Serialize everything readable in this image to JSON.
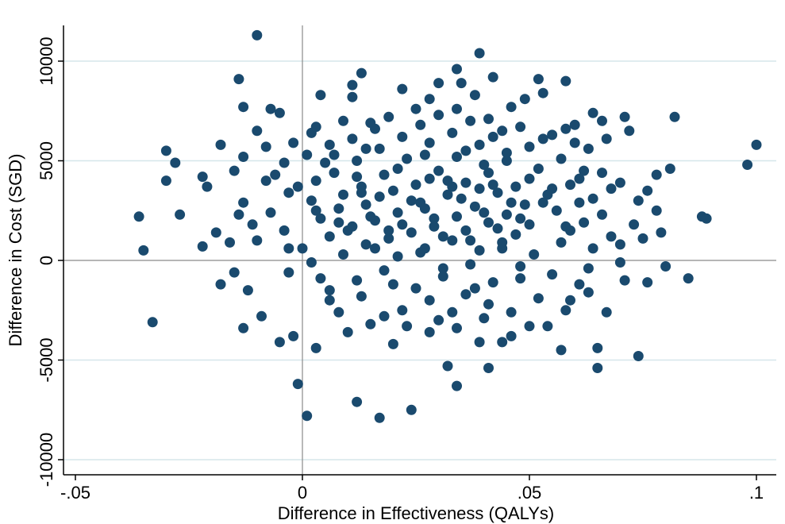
{
  "chart_data": {
    "type": "scatter",
    "title": "",
    "xlabel": "Difference in Effectiveness (QALYs)",
    "ylabel": "Difference in Cost (SGD)",
    "xlim": [
      -0.05,
      0.1
    ],
    "ylim": [
      -10000,
      10000
    ],
    "x_ticks": [
      {
        "value": -0.05,
        "label": "-.05"
      },
      {
        "value": 0,
        "label": "0"
      },
      {
        "value": 0.05,
        "label": ".05"
      },
      {
        "value": 0.1,
        "label": ".1"
      }
    ],
    "y_ticks": [
      {
        "value": -10000,
        "label": "-10000"
      },
      {
        "value": -5000,
        "label": "-5000"
      },
      {
        "value": 0,
        "label": "0"
      },
      {
        "value": 5000,
        "label": "5000"
      },
      {
        "value": 10000,
        "label": "10000"
      }
    ],
    "grid": "horizontal",
    "reference_lines": {
      "x": 0,
      "y": 0
    },
    "colors": {
      "points": "#1a4a6e",
      "grid": "#d6e6ea",
      "axis": "#000000",
      "reference": "#8a8a8a"
    },
    "series": [
      {
        "points": [
          [
            -0.01,
            11300
          ],
          [
            0.039,
            10400
          ],
          [
            0.034,
            9600
          ],
          [
            0.013,
            9400
          ],
          [
            -0.014,
            9100
          ],
          [
            0.042,
            9200
          ],
          [
            0.052,
            9100
          ],
          [
            0.058,
            9000
          ],
          [
            0.03,
            8900
          ],
          [
            0.035,
            8900
          ],
          [
            0.011,
            8800
          ],
          [
            0.004,
            8300
          ],
          [
            0.011,
            8200
          ],
          [
            0.049,
            8100
          ],
          [
            0.053,
            8400
          ],
          [
            -0.013,
            7700
          ],
          [
            -0.007,
            7600
          ],
          [
            -0.005,
            7400
          ],
          [
            0.034,
            7600
          ],
          [
            0.064,
            7400
          ],
          [
            0.071,
            7200
          ],
          [
            0.082,
            7200
          ],
          [
            0.066,
            7000
          ],
          [
            -0.01,
            6500
          ],
          [
            0.002,
            6400
          ],
          [
            0.06,
            6800
          ],
          [
            0.072,
            6500
          ],
          [
            0.067,
            6100
          ],
          [
            -0.018,
            5800
          ],
          [
            -0.03,
            5500
          ],
          [
            -0.013,
            5200
          ],
          [
            -0.028,
            4900
          ],
          [
            0.1,
            5800
          ],
          [
            0.098,
            4800
          ],
          [
            0.078,
            4300
          ],
          [
            0.081,
            4600
          ],
          [
            -0.022,
            4200
          ],
          [
            -0.03,
            4000
          ],
          [
            -0.021,
            3700
          ],
          [
            -0.008,
            4000
          ],
          [
            0.068,
            3600
          ],
          [
            0.076,
            3500
          ],
          [
            -0.036,
            2200
          ],
          [
            -0.027,
            2300
          ],
          [
            -0.014,
            2300
          ],
          [
            0.074,
            3000
          ],
          [
            0.078,
            2500
          ],
          [
            0.088,
            2200
          ],
          [
            0.089,
            2100
          ],
          [
            -0.019,
            1400
          ],
          [
            -0.022,
            700
          ],
          [
            -0.01,
            1000
          ],
          [
            0.075,
            1100
          ],
          [
            0.079,
            1400
          ],
          [
            -0.035,
            500
          ],
          [
            0.07,
            -100
          ],
          [
            0.071,
            -1000
          ],
          [
            0.085,
            -900
          ],
          [
            0.08,
            -300
          ],
          [
            -0.018,
            -1200
          ],
          [
            -0.012,
            -1500
          ],
          [
            0.076,
            -1100
          ],
          [
            -0.033,
            -3100
          ],
          [
            -0.013,
            -3400
          ],
          [
            -0.005,
            -4100
          ],
          [
            0.065,
            -4400
          ],
          [
            0.074,
            -4800
          ],
          [
            0.057,
            -4500
          ],
          [
            0.065,
            -5400
          ],
          [
            0.041,
            -5400
          ],
          [
            0.032,
            -5300
          ],
          [
            0.034,
            -6300
          ],
          [
            -0.001,
            -6200
          ],
          [
            0.012,
            -7100
          ],
          [
            0.001,
            -7800
          ],
          [
            0.017,
            -7900
          ],
          [
            0.024,
            -7500
          ],
          [
            0.003,
            -4400
          ],
          [
            0.01,
            -3600
          ],
          [
            0.02,
            -4200
          ],
          [
            0.044,
            -4100
          ],
          [
            0.05,
            -3300
          ],
          [
            0.054,
            -3300
          ],
          [
            0.039,
            -4100
          ],
          [
            0.028,
            -3600
          ],
          [
            0.015,
            -3200
          ],
          [
            0.008,
            -2600
          ],
          [
            -0.002,
            -3800
          ],
          [
            0.006,
            -2000
          ],
          [
            0.022,
            -2500
          ],
          [
            0.033,
            -2600
          ],
          [
            0.046,
            -2600
          ],
          [
            0.059,
            -2000
          ],
          [
            0.067,
            -2600
          ],
          [
            0.052,
            -1900
          ],
          [
            0.036,
            -1700
          ],
          [
            0.025,
            -1400
          ],
          [
            0.012,
            -1000
          ],
          [
            -0.003,
            -600
          ],
          [
            0.004,
            -900
          ],
          [
            0.018,
            -500
          ],
          [
            0.031,
            -800
          ],
          [
            0.042,
            -1100
          ],
          [
            0.055,
            -700
          ],
          [
            0.063,
            -400
          ],
          [
            0.061,
            -1200
          ],
          [
            0.048,
            -300
          ],
          [
            0.037,
            -200
          ],
          [
            0.021,
            200
          ],
          [
            0.009,
            300
          ],
          [
            0,
            600
          ],
          [
            0.014,
            800
          ],
          [
            0.027,
            600
          ],
          [
            0.039,
            500
          ],
          [
            0.051,
            300
          ],
          [
            0.064,
            600
          ],
          [
            0.057,
            900
          ],
          [
            0.044,
            900
          ],
          [
            0.033,
            1000
          ],
          [
            0.019,
            1100
          ],
          [
            0.006,
            1200
          ],
          [
            -0.004,
            1500
          ],
          [
            0.011,
            1700
          ],
          [
            0.024,
            1400
          ],
          [
            0.036,
            1500
          ],
          [
            0.047,
            1300
          ],
          [
            0.059,
            1500
          ],
          [
            0.068,
            1200
          ],
          [
            0.062,
            1900
          ],
          [
            0.05,
            1800
          ],
          [
            0.041,
            1900
          ],
          [
            0.029,
            1700
          ],
          [
            0.016,
            2000
          ],
          [
            0.004,
            2100
          ],
          [
            -0.007,
            2400
          ],
          [
            0.008,
            2600
          ],
          [
            0.021,
            2400
          ],
          [
            0.034,
            2200
          ],
          [
            0.045,
            2300
          ],
          [
            0.056,
            2500
          ],
          [
            0.066,
            2300
          ],
          [
            0.061,
            2900
          ],
          [
            0.049,
            2800
          ],
          [
            0.038,
            2700
          ],
          [
            0.026,
            2900
          ],
          [
            0.014,
            2800
          ],
          [
            0.002,
            3000
          ],
          [
            -0.003,
            3400
          ],
          [
            0.009,
            3300
          ],
          [
            0.02,
            3500
          ],
          [
            0.032,
            3300
          ],
          [
            0.043,
            3400
          ],
          [
            0.054,
            3300
          ],
          [
            0.064,
            3100
          ],
          [
            0.059,
            3800
          ],
          [
            0.047,
            3700
          ],
          [
            0.036,
            3900
          ],
          [
            0.025,
            3800
          ],
          [
            0.013,
            3700
          ],
          [
            0.003,
            4000
          ],
          [
            -0.006,
            4300
          ],
          [
            0.007,
            4400
          ],
          [
            0.018,
            4300
          ],
          [
            0.03,
            4500
          ],
          [
            0.041,
            4400
          ],
          [
            0.052,
            4600
          ],
          [
            0.062,
            4500
          ],
          [
            0.057,
            5100
          ],
          [
            0.045,
            5000
          ],
          [
            0.034,
            5200
          ],
          [
            0.023,
            5100
          ],
          [
            0.012,
            5000
          ],
          [
            0.001,
            5300
          ],
          [
            -0.008,
            5700
          ],
          [
            0.006,
            5800
          ],
          [
            0.017,
            5600
          ],
          [
            0.028,
            5900
          ],
          [
            0.039,
            5800
          ],
          [
            0.05,
            5700
          ],
          [
            0.06,
            5900
          ],
          [
            0.055,
            6300
          ],
          [
            0.044,
            6500
          ],
          [
            0.033,
            6400
          ],
          [
            0.022,
            6200
          ],
          [
            0.011,
            6100
          ],
          [
            0.003,
            6700
          ],
          [
            0.015,
            6900
          ],
          [
            0.026,
            6800
          ],
          [
            0.037,
            7000
          ],
          [
            0.048,
            6700
          ],
          [
            0.019,
            7200
          ],
          [
            0.03,
            7300
          ],
          [
            0.041,
            7100
          ],
          [
            0.009,
            7000
          ],
          [
            0.025,
            7600
          ],
          [
            0.01,
            1500
          ],
          [
            0.015,
            2200
          ],
          [
            0.022,
            1800
          ],
          [
            0.027,
            2600
          ],
          [
            0.031,
            1200
          ],
          [
            0.035,
            3100
          ],
          [
            0.04,
            2400
          ],
          [
            0.043,
            1600
          ],
          [
            0.046,
            2900
          ],
          [
            0.039,
            3600
          ],
          [
            0.028,
            4100
          ],
          [
            0.017,
            3200
          ],
          [
            0.012,
            4200
          ],
          [
            0.024,
            3000
          ],
          [
            0.033,
            3700
          ],
          [
            0.019,
            1500
          ],
          [
            0.029,
            2100
          ],
          [
            0.037,
            1000
          ],
          [
            0.042,
            3800
          ],
          [
            0.048,
            2100
          ],
          [
            0.053,
            2900
          ],
          [
            0.058,
            1700
          ],
          [
            0.044,
            600
          ],
          [
            0.026,
            400
          ],
          [
            0.016,
            600
          ],
          [
            0.008,
            1900
          ],
          [
            0.013,
            3400
          ],
          [
            0.021,
            4600
          ],
          [
            0.032,
            4000
          ],
          [
            0.04,
            4800
          ],
          [
            0.05,
            4100
          ],
          [
            0.055,
            3600
          ],
          [
            0.061,
            4100
          ],
          [
            0.045,
            5400
          ],
          [
            0.036,
            5500
          ],
          [
            0.027,
            5300
          ],
          [
            0.014,
            5600
          ],
          [
            0.005,
            4900
          ],
          [
            -0.001,
            3700
          ],
          [
            0.003,
            2500
          ],
          [
            0.031,
            -400
          ],
          [
            0.02,
            -1200
          ],
          [
            0.038,
            -1400
          ],
          [
            0.048,
            -900
          ],
          [
            0.013,
            -1800
          ],
          [
            0.028,
            -2000
          ],
          [
            0.041,
            -2200
          ],
          [
            0.006,
            -1500
          ],
          [
            -0.009,
            -2800
          ],
          [
            -0.015,
            -600
          ],
          [
            -0.016,
            900
          ],
          [
            -0.011,
            1800
          ],
          [
            -0.013,
            2900
          ],
          [
            -0.015,
            4500
          ],
          [
            -0.004,
            4900
          ],
          [
            -0.002,
            5900
          ],
          [
            0.058,
            -2500
          ],
          [
            0.063,
            -1600
          ],
          [
            0.07,
            800
          ],
          [
            0.073,
            1800
          ],
          [
            0.066,
            4400
          ],
          [
            0.07,
            3900
          ],
          [
            0.063,
            5600
          ],
          [
            0.053,
            6100
          ],
          [
            0.058,
            6600
          ],
          [
            0.042,
            6200
          ],
          [
            0.046,
            7700
          ],
          [
            0.038,
            8300
          ],
          [
            0.028,
            8100
          ],
          [
            0.022,
            8600
          ],
          [
            0.016,
            6600
          ],
          [
            0.007,
            5300
          ],
          [
            -0.003,
            600
          ],
          [
            0.002,
            -100
          ],
          [
            0.018,
            -2800
          ],
          [
            0.023,
            -3300
          ],
          [
            0.034,
            -3400
          ],
          [
            0.046,
            -3800
          ],
          [
            0.04,
            -2900
          ],
          [
            0.03,
            -3000
          ]
        ]
      }
    ]
  }
}
